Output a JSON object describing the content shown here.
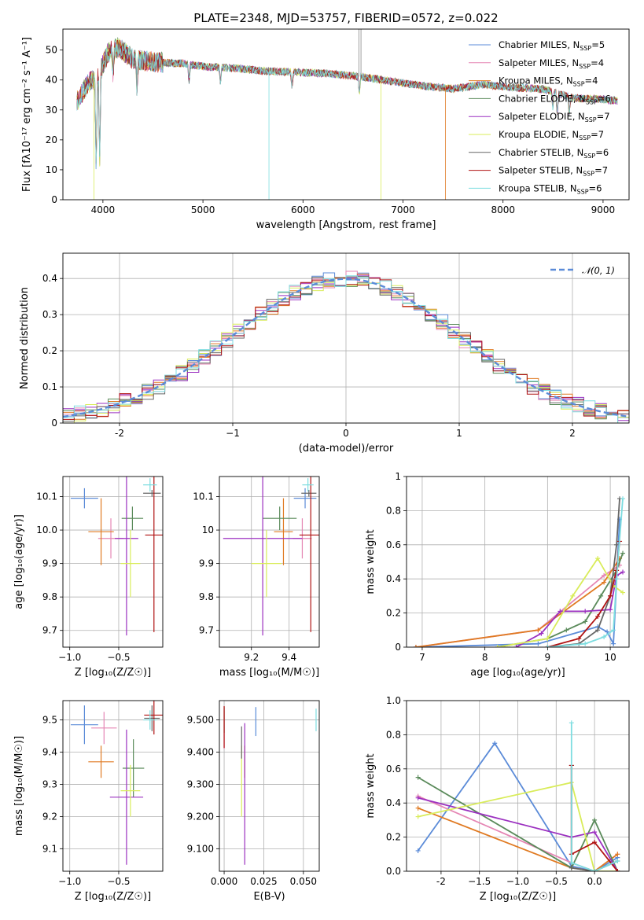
{
  "title": "PLATE=2348, MJD=53757, FIBERID=0572, z=0.022",
  "colors": {
    "Chabrier MILES": "#5b8bd8",
    "Salpeter MILES": "#e586b4",
    "Kroupa MILES": "#e07a22",
    "Chabrier ELODIE": "#5a8a5a",
    "Salpeter ELODIE": "#9b30c0",
    "Kroupa ELODIE": "#d9ec5a",
    "Chabrier STELIB": "#666666",
    "Salpeter STELIB": "#b01212",
    "Kroupa STELIB": "#7ddde0",
    "normal": "#5b8bd8",
    "grid": "#b0b0b0"
  },
  "legend_models": [
    {
      "name": "Chabrier MILES",
      "n": "5"
    },
    {
      "name": "Salpeter MILES",
      "n": "4"
    },
    {
      "name": "Kroupa MILES",
      "n": "4"
    },
    {
      "name": "Chabrier ELODIE",
      "n": "6"
    },
    {
      "name": "Salpeter ELODIE",
      "n": "7"
    },
    {
      "name": "Kroupa ELODIE",
      "n": "7"
    },
    {
      "name": "Chabrier STELIB",
      "n": "6"
    },
    {
      "name": "Salpeter STELIB",
      "n": "7"
    },
    {
      "name": "Kroupa STELIB",
      "n": "6"
    }
  ],
  "chart_data": [
    {
      "id": "spectrum",
      "type": "line",
      "xlabel": "wavelength [Angstrom, rest frame]",
      "ylabel": "Flux [fλ10⁻¹⁷ erg cm⁻² s⁻¹ A⁻¹]",
      "xlim": [
        3600,
        9260
      ],
      "ylim": [
        0,
        57
      ],
      "xticks": [
        4000,
        5000,
        6000,
        7000,
        8000,
        9000
      ],
      "yticks": [
        0,
        10,
        20,
        30,
        40,
        50
      ],
      "continuum": {
        "x": [
          3750,
          3850,
          3950,
          4050,
          4150,
          4300,
          4500,
          4800,
          5000,
          5300,
          5600,
          6000,
          6300,
          6600,
          6900,
          7200,
          7500,
          7800,
          8100,
          8400,
          8700,
          9000,
          9150
        ],
        "y": [
          33,
          39,
          41,
          49,
          51,
          47,
          46,
          45.5,
          44.5,
          44,
          43,
          42.5,
          42,
          41,
          39.5,
          38,
          37,
          38.5,
          37.5,
          37,
          34,
          33.5,
          33
        ]
      },
      "features": [
        {
          "x": 3933,
          "depth": 30
        },
        {
          "x": 3968,
          "depth": 28
        },
        {
          "x": 4101,
          "depth": 8
        },
        {
          "x": 4340,
          "depth": 10
        },
        {
          "x": 4861,
          "depth": 6
        },
        {
          "x": 5175,
          "depth": 5
        },
        {
          "x": 5890,
          "depth": 5
        },
        {
          "x": 6563,
          "depth": 6
        },
        {
          "x": 8498,
          "depth": 5
        },
        {
          "x": 8542,
          "depth": 7
        },
        {
          "x": 8662,
          "depth": 6
        }
      ]
    },
    {
      "id": "residuals",
      "type": "line",
      "xlabel": "(data-model)/error",
      "ylabel": "Normed distribution",
      "xlim": [
        -2.5,
        2.5
      ],
      "ylim": [
        0,
        0.47
      ],
      "xticks": [
        -2,
        -1,
        0,
        1,
        2
      ],
      "yticks": [
        0.0,
        0.1,
        0.2,
        0.3,
        0.4
      ],
      "legend": "𝒩(0, 1)",
      "bins": 50
    },
    {
      "id": "age_vs_Z",
      "type": "scatter",
      "xlabel": "Z [log₁₀(Z/Z☉)]",
      "ylabel": "age  [log₁₀(age/yr)]",
      "xlim": [
        -1.07,
        -0.05
      ],
      "ylim": [
        9.65,
        10.16
      ],
      "xticks": [
        -1.0,
        -0.5
      ],
      "yticks": [
        9.7,
        9.8,
        9.9,
        10.0,
        10.1
      ],
      "points": [
        {
          "model": "Chabrier MILES",
          "x": -0.85,
          "y": 10.095,
          "xerr": 0.14,
          "yerr": 0.03
        },
        {
          "model": "Salpeter MILES",
          "x": -0.58,
          "y": 9.975,
          "xerr": 0.13,
          "yerr": 0.06
        },
        {
          "model": "Kroupa MILES",
          "x": -0.68,
          "y": 9.995,
          "xerr": 0.13,
          "yerr": 0.1
        },
        {
          "model": "Chabrier ELODIE",
          "x": -0.36,
          "y": 10.035,
          "xerr": 0.11,
          "yerr": 0.035
        },
        {
          "model": "Salpeter ELODIE",
          "x": -0.42,
          "y": 9.975,
          "xerr": 0.12,
          "yerr": 0.29
        },
        {
          "model": "Kroupa ELODIE",
          "x": -0.38,
          "y": 9.9,
          "xerr": 0.1,
          "yerr": 0.1
        },
        {
          "model": "Chabrier STELIB",
          "x": -0.16,
          "y": 10.11,
          "xerr": 0.09,
          "yerr": 0.01
        },
        {
          "model": "Salpeter STELIB",
          "x": -0.14,
          "y": 9.985,
          "xerr": 0.09,
          "yerr": 0.29
        },
        {
          "model": "Kroupa STELIB",
          "x": -0.18,
          "y": 10.135,
          "xerr": 0.07,
          "yerr": 0.02
        }
      ]
    },
    {
      "id": "age_vs_mass",
      "type": "scatter",
      "xlabel": "mass [log₁₀(M/M☉)]",
      "ylabel": "",
      "xlim": [
        9.03,
        9.56
      ],
      "ylim": [
        9.65,
        10.16
      ],
      "xticks": [
        9.2,
        9.4
      ],
      "yticks": [
        9.7,
        9.8,
        9.9,
        10.0,
        10.1
      ],
      "points": [
        {
          "model": "Chabrier MILES",
          "x": 9.485,
          "y": 10.095,
          "xerr": 0.06,
          "yerr": 0.03
        },
        {
          "model": "Salpeter MILES",
          "x": 9.47,
          "y": 9.975,
          "xerr": 0.05,
          "yerr": 0.06
        },
        {
          "model": "Kroupa MILES",
          "x": 9.37,
          "y": 9.995,
          "xerr": 0.05,
          "yerr": 0.1
        },
        {
          "model": "Chabrier ELODIE",
          "x": 9.35,
          "y": 10.035,
          "xerr": 0.09,
          "yerr": 0.035
        },
        {
          "model": "Salpeter ELODIE",
          "x": 9.26,
          "y": 9.975,
          "xerr": 0.21,
          "yerr": 0.29
        },
        {
          "model": "Kroupa ELODIE",
          "x": 9.28,
          "y": 9.9,
          "xerr": 0.08,
          "yerr": 0.1
        },
        {
          "model": "Chabrier STELIB",
          "x": 9.505,
          "y": 10.11,
          "xerr": 0.04,
          "yerr": 0.01
        },
        {
          "model": "Salpeter STELIB",
          "x": 9.515,
          "y": 9.985,
          "xerr": 0.06,
          "yerr": 0.29
        },
        {
          "model": "Kroupa STELIB",
          "x": 9.5,
          "y": 10.135,
          "xerr": 0.03,
          "yerr": 0.02
        }
      ]
    },
    {
      "id": "weight_vs_age",
      "type": "line",
      "xlabel": "age  [log₁₀(age/yr)]",
      "ylabel": "mass weight",
      "xlim": [
        6.75,
        10.3
      ],
      "ylim": [
        0,
        1
      ],
      "xticks": [
        7,
        8,
        9,
        10
      ],
      "yticks": [
        0.0,
        0.2,
        0.4,
        0.6,
        0.8,
        1.0
      ],
      "series": [
        {
          "model": "Chabrier MILES",
          "x": [
            6.9,
            8.85,
            9.8,
            9.95,
            10.05,
            10.15
          ],
          "y": [
            0.0,
            0.02,
            0.12,
            0.09,
            0.02,
            0.75
          ]
        },
        {
          "model": "Salpeter MILES",
          "x": [
            6.9,
            8.85,
            9.9,
            10.15
          ],
          "y": [
            0.0,
            0.1,
            0.42,
            0.48
          ]
        },
        {
          "model": "Kroupa MILES",
          "x": [
            6.9,
            8.85,
            9.9,
            10.15
          ],
          "y": [
            0.0,
            0.1,
            0.38,
            0.52
          ]
        },
        {
          "model": "Chabrier ELODIE",
          "x": [
            8.2,
            9.0,
            9.3,
            9.6,
            9.85,
            10.1,
            10.2
          ],
          "y": [
            0.0,
            0.05,
            0.1,
            0.15,
            0.3,
            0.45,
            0.55
          ]
        },
        {
          "model": "Salpeter ELODIE",
          "x": [
            8.5,
            8.9,
            9.2,
            9.6,
            10.0,
            10.1,
            10.2
          ],
          "y": [
            0.0,
            0.08,
            0.21,
            0.21,
            0.22,
            0.42,
            0.44
          ]
        },
        {
          "model": "Kroupa ELODIE",
          "x": [
            8.2,
            9.0,
            9.4,
            9.8,
            10.05,
            10.2
          ],
          "y": [
            0.0,
            0.05,
            0.3,
            0.52,
            0.36,
            0.32
          ]
        },
        {
          "model": "Chabrier STELIB",
          "x": [
            9.0,
            9.5,
            9.8,
            10.0,
            10.1,
            10.15
          ],
          "y": [
            0.0,
            0.02,
            0.1,
            0.3,
            0.6,
            0.87
          ]
        },
        {
          "model": "Salpeter STELIB",
          "x": [
            9.0,
            9.5,
            9.8,
            10.0,
            10.1,
            10.15
          ],
          "y": [
            0.0,
            0.05,
            0.18,
            0.3,
            0.45,
            0.62
          ]
        },
        {
          "model": "Kroupa STELIB",
          "x": [
            9.0,
            9.6,
            9.9,
            10.05,
            10.1,
            10.2
          ],
          "y": [
            0.0,
            0.02,
            0.06,
            0.1,
            0.4,
            0.87
          ]
        }
      ]
    },
    {
      "id": "mass_vs_Z",
      "type": "scatter",
      "xlabel": "Z [log₁₀(Z/Z☉)]",
      "ylabel": "mass [log₁₀(M/M☉)]",
      "xlim": [
        -1.07,
        -0.05
      ],
      "ylim": [
        9.03,
        9.56
      ],
      "xticks": [
        -1.0,
        -0.5
      ],
      "yticks": [
        9.1,
        9.2,
        9.3,
        9.4,
        9.5
      ],
      "points": [
        {
          "model": "Chabrier MILES",
          "x": -0.85,
          "y": 9.485,
          "xerr": 0.14,
          "yerr": 0.06
        },
        {
          "model": "Salpeter MILES",
          "x": -0.65,
          "y": 9.475,
          "xerr": 0.13,
          "yerr": 0.05
        },
        {
          "model": "Kroupa MILES",
          "x": -0.68,
          "y": 9.37,
          "xerr": 0.13,
          "yerr": 0.05
        },
        {
          "model": "Chabrier ELODIE",
          "x": -0.35,
          "y": 9.35,
          "xerr": 0.11,
          "yerr": 0.09
        },
        {
          "model": "Salpeter ELODIE",
          "x": -0.42,
          "y": 9.26,
          "xerr": 0.17,
          "yerr": 0.21
        },
        {
          "model": "Kroupa ELODIE",
          "x": -0.38,
          "y": 9.28,
          "xerr": 0.1,
          "yerr": 0.08
        },
        {
          "model": "Chabrier STELIB",
          "x": -0.16,
          "y": 9.505,
          "xerr": 0.08,
          "yerr": 0.04
        },
        {
          "model": "Salpeter STELIB",
          "x": -0.14,
          "y": 9.515,
          "xerr": 0.1,
          "yerr": 0.06
        },
        {
          "model": "Kroupa STELIB",
          "x": -0.18,
          "y": 9.5,
          "xerr": 0.07,
          "yerr": 0.03
        }
      ]
    },
    {
      "id": "mass_vs_EBV",
      "type": "scatter",
      "xlabel": "E(B-V)",
      "ylabel": "",
      "xlim": [
        -0.003,
        0.06
      ],
      "ylim": [
        9.03,
        9.56
      ],
      "xticks": [
        0.0,
        0.025,
        0.05
      ],
      "yticks": [
        9.1,
        9.2,
        9.3,
        9.4,
        9.5
      ],
      "points": [
        {
          "model": "Chabrier MILES",
          "x": 0.02,
          "y": 9.495,
          "xerr": 0,
          "yerr": 0.045
        },
        {
          "model": "Salpeter MILES",
          "x": 0.0,
          "y": 9.47,
          "xerr": 0,
          "yerr": 0.06
        },
        {
          "model": "Kroupa MILES",
          "x": 0.013,
          "y": 9.37,
          "xerr": 0,
          "yerr": 0.05
        },
        {
          "model": "Chabrier ELODIE",
          "x": 0.0,
          "y": 9.5,
          "xerr": 0,
          "yerr": 0.04
        },
        {
          "model": "Salpeter ELODIE",
          "x": 0.013,
          "y": 9.27,
          "xerr": 0,
          "yerr": 0.22
        },
        {
          "model": "Kroupa ELODIE",
          "x": 0.011,
          "y": 9.31,
          "xerr": 0,
          "yerr": 0.11
        },
        {
          "model": "Chabrier STELIB",
          "x": 0.011,
          "y": 9.43,
          "xerr": 0,
          "yerr": 0.05
        },
        {
          "model": "Salpeter STELIB",
          "x": 0.0,
          "y": 9.478,
          "xerr": 0,
          "yerr": 0.065
        },
        {
          "model": "Kroupa STELIB",
          "x": 0.058,
          "y": 9.5,
          "xerr": 0,
          "yerr": 0.035
        }
      ]
    },
    {
      "id": "weight_vs_Z",
      "type": "line",
      "xlabel": "Z [log₁₀(Z/Z☉)]",
      "ylabel": "mass weight",
      "xlim": [
        -2.45,
        0.45
      ],
      "ylim": [
        0,
        1
      ],
      "xticks": [
        -2.0,
        -1.5,
        -1.0,
        -0.5,
        0.0
      ],
      "yticks": [
        0.0,
        0.2,
        0.4,
        0.6,
        0.8,
        1.0
      ],
      "series": [
        {
          "model": "Chabrier MILES",
          "x": [
            -2.3,
            -1.3,
            -0.3,
            0.0,
            0.3
          ],
          "y": [
            0.12,
            0.75,
            0.03,
            0.0,
            0.08
          ]
        },
        {
          "model": "Salpeter MILES",
          "x": [
            -2.3,
            -0.3,
            0.0,
            0.3
          ],
          "y": [
            0.44,
            0.05,
            0.0,
            0.1
          ]
        },
        {
          "model": "Kroupa MILES",
          "x": [
            -2.3,
            -0.3,
            0.0,
            0.3
          ],
          "y": [
            0.37,
            0.02,
            0.0,
            0.1
          ]
        },
        {
          "model": "Chabrier ELODIE",
          "x": [
            -2.3,
            -0.3,
            0.0,
            0.3
          ],
          "y": [
            0.55,
            0.02,
            0.3,
            0.0
          ]
        },
        {
          "model": "Salpeter ELODIE",
          "x": [
            -2.3,
            -0.3,
            0.0,
            0.3
          ],
          "y": [
            0.43,
            0.2,
            0.23,
            0.0
          ]
        },
        {
          "model": "Kroupa ELODIE",
          "x": [
            -2.3,
            -0.3,
            0.0,
            0.3
          ],
          "y": [
            0.32,
            0.52,
            0.0,
            0.0
          ]
        },
        {
          "model": "Chabrier STELIB",
          "x": [
            -0.3,
            -0.3,
            0.0,
            0.3
          ],
          "y": [
            0.62,
            0.02,
            0.0,
            0.06
          ]
        },
        {
          "model": "Salpeter STELIB",
          "x": [
            -0.3,
            -0.3,
            0.0,
            0.3
          ],
          "y": [
            0.62,
            0.1,
            0.17,
            0.0
          ]
        },
        {
          "model": "Kroupa STELIB",
          "x": [
            -0.3,
            -0.3,
            0.0,
            0.3
          ],
          "y": [
            0.87,
            0.05,
            0.0,
            0.06
          ]
        }
      ]
    }
  ]
}
